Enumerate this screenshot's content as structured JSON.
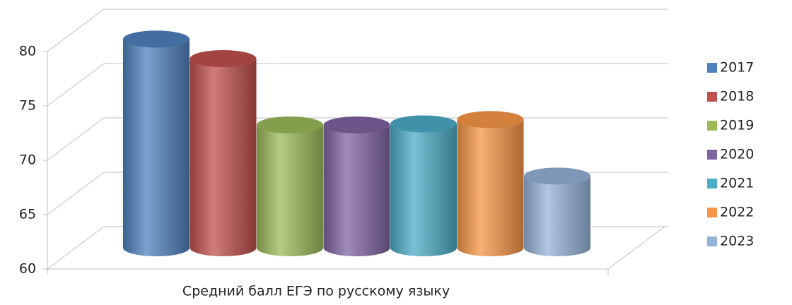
{
  "chart_data": {
    "type": "bar3d",
    "categories": [
      "Средний балл ЕГЭ по русскому языку"
    ],
    "series": [
      {
        "name": "2017",
        "color": "#4f81bd",
        "values": [
          79.2
        ]
      },
      {
        "name": "2018",
        "color": "#c0504d",
        "values": [
          77.4
        ]
      },
      {
        "name": "2019",
        "color": "#9bbb59",
        "values": [
          71.3
        ]
      },
      {
        "name": "2020",
        "color": "#8064a2",
        "values": [
          71.3
        ]
      },
      {
        "name": "2021",
        "color": "#4bacc6",
        "values": [
          71.4
        ]
      },
      {
        "name": "2022",
        "color": "#f79646",
        "values": [
          71.8
        ]
      },
      {
        "name": "2023",
        "color": "#95b3d7",
        "values": [
          66.6
        ]
      }
    ],
    "ylim": [
      60,
      80
    ],
    "yticks": [
      60,
      65,
      70,
      75,
      80
    ],
    "grid": true,
    "legend": "right"
  }
}
